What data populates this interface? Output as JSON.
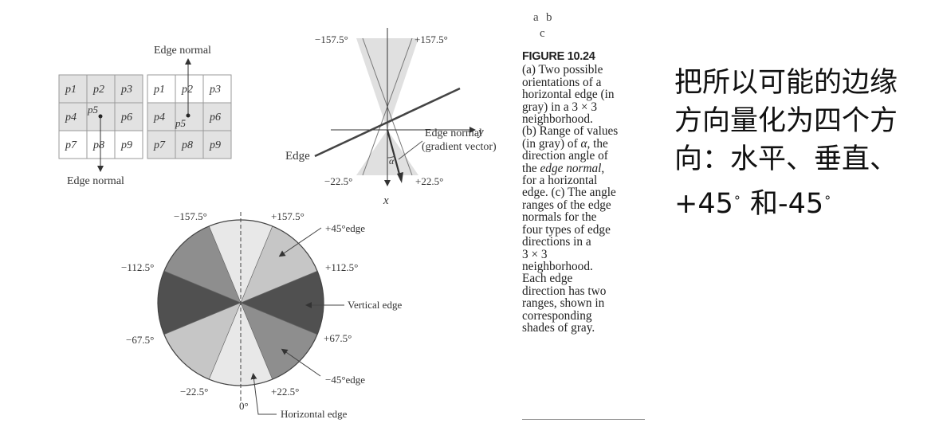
{
  "panel_a": {
    "edge_normal_top": "Edge normal",
    "edge_normal_bottom": "Edge normal",
    "grid_left_labels": [
      "p1",
      "p2",
      "p3",
      "p4",
      "p5",
      "p6",
      "p7",
      "p8",
      "p9"
    ],
    "grid_right_labels": [
      "p1",
      "p2",
      "p3",
      "p4",
      "p5",
      "p6",
      "p7",
      "p8",
      "p9"
    ]
  },
  "panel_b": {
    "label_top_left": "−157.5°",
    "label_top_right": "+157.5°",
    "label_bottom_left": "−22.5°",
    "label_bottom_right": "+22.5°",
    "axis_y": "y",
    "axis_x": "x",
    "edge_label": "Edge",
    "edge_normal_label": "Edge normal",
    "gradient_label": "(gradient vector)",
    "alpha_label": "α"
  },
  "panel_c": {
    "labels": {
      "m157": "−157.5°",
      "p157": "+157.5°",
      "p45edge": "+45°edge",
      "m112": "−112.5°",
      "p112": "+112.5°",
      "vertical": "Vertical edge",
      "m67": "−67.5°",
      "p67": "+67.5°",
      "m45edge": "−45°edge",
      "m22": "−22.5°",
      "zero": "0°",
      "p22": "+22.5°",
      "horizontal": "Horizontal edge"
    },
    "colors": {
      "horizontal": "#e8e8e8",
      "plus45": "#c6c6c6",
      "vertical": "#505050",
      "minus45": "#8e8e8e"
    }
  },
  "badge": {
    "a": "a",
    "b": "b",
    "c": "c"
  },
  "caption": {
    "title": "FIGURE 10.24",
    "lines": [
      "(a) Two possible",
      "orientations of a",
      "horizontal edge (in",
      "gray) in a 3 × 3",
      "neighborhood.",
      "(b) Range of values",
      "(in gray) of α, the",
      "direction angle of",
      "the edge normal,",
      "for a horizontal",
      "edge. (c) The angle",
      "ranges of the edge",
      "normals for the",
      "four types of edge",
      "directions in a",
      "3 × 3",
      "neighborhood.",
      "Each edge",
      "direction has two",
      "ranges, shown in",
      "corresponding",
      "shades of gray."
    ]
  },
  "chinese_text": {
    "line1": "把所以可能的边缘",
    "line2": "方向量化为四个方",
    "line3": "向：水平、垂直、",
    "line4_a": "+45",
    "line4_deg1": "∘",
    "line4_b": " 和-45",
    "line4_deg2": "∘"
  }
}
